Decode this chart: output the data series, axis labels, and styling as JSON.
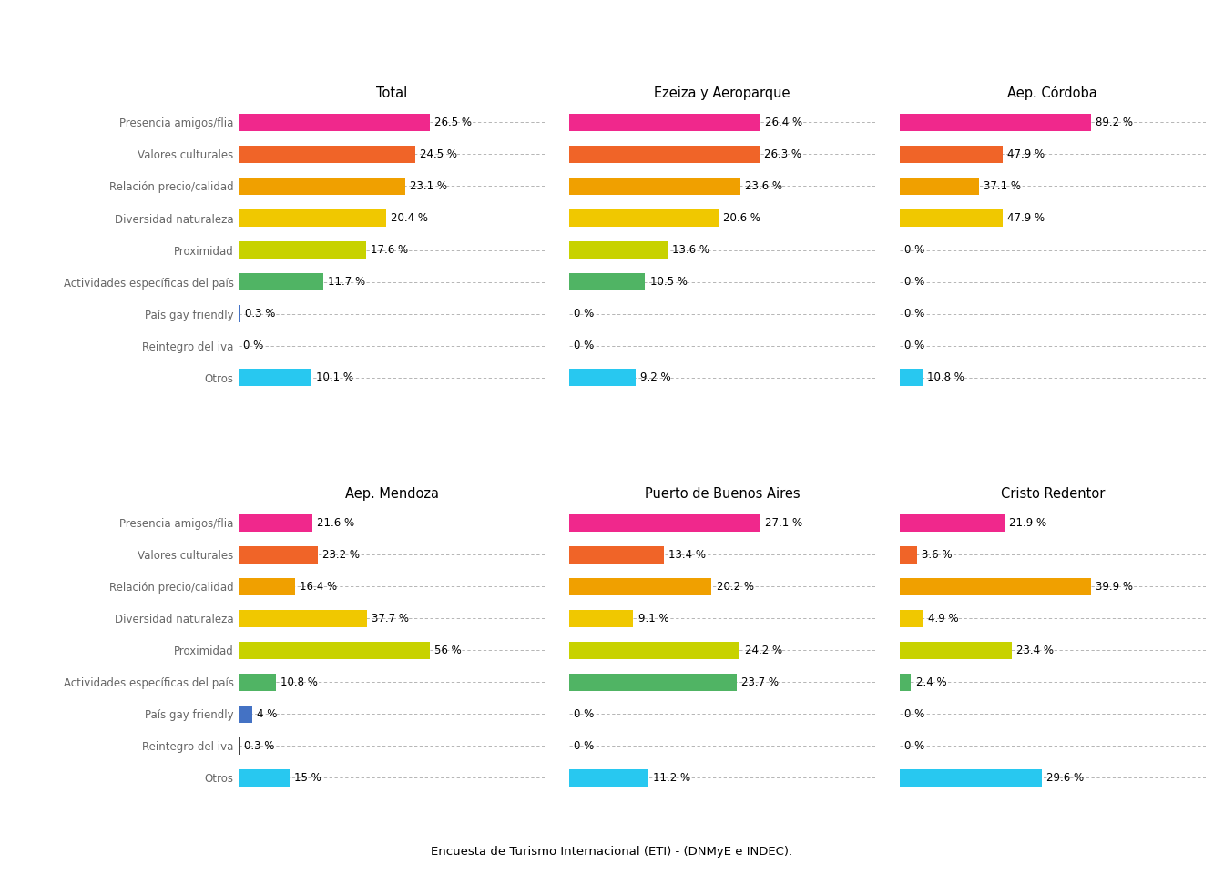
{
  "categories": [
    "Presencia amigos/flia",
    "Valores culturales",
    "Relación precio/calidad",
    "Diversidad naturaleza",
    "Proximidad",
    "Actividades específicas del país",
    "País gay friendly",
    "Reintegro del iva",
    "Otros"
  ],
  "bar_colors": [
    "#F0288C",
    "#F06428",
    "#F0A000",
    "#F0C800",
    "#C8D200",
    "#50B464",
    "#4472C4",
    "#404040",
    "#28C8F0"
  ],
  "panels": [
    {
      "title": "Total",
      "values": [
        26.5,
        24.5,
        23.1,
        20.4,
        17.6,
        11.7,
        0.3,
        0.0,
        10.1
      ]
    },
    {
      "title": "Ezeiza y Aeroparque",
      "values": [
        26.4,
        26.3,
        23.6,
        20.6,
        13.6,
        10.5,
        0.0,
        0.0,
        9.2
      ]
    },
    {
      "title": "Aep. Córdoba",
      "values": [
        89.2,
        47.9,
        37.1,
        47.9,
        0.0,
        0.0,
        0.0,
        0.0,
        10.8
      ]
    },
    {
      "title": "Aep. Mendoza",
      "values": [
        21.6,
        23.2,
        16.4,
        37.7,
        56.0,
        10.8,
        4.0,
        0.3,
        15.0
      ]
    },
    {
      "title": "Puerto de Buenos Aires",
      "values": [
        27.1,
        13.4,
        20.2,
        9.1,
        24.2,
        23.7,
        0.0,
        0.0,
        11.2
      ]
    },
    {
      "title": "Cristo Redentor",
      "values": [
        21.9,
        3.6,
        39.9,
        4.9,
        23.4,
        2.4,
        0.0,
        0.0,
        29.6
      ]
    }
  ],
  "label_values": [
    [
      "26.5 %",
      "24.5 %",
      "23.1 %",
      "20.4 %",
      "17.6 %",
      "11.7 %",
      "0.3 %",
      "0 %",
      "10.1 %"
    ],
    [
      "26.4 %",
      "26.3 %",
      "23.6 %",
      "20.6 %",
      "13.6 %",
      "10.5 %",
      "0 %",
      "0 %",
      "9.2 %"
    ],
    [
      "89.2 %",
      "47.9 %",
      "37.1 %",
      "47.9 %",
      "0 %",
      "0 %",
      "0 %",
      "0 %",
      "10.8 %"
    ],
    [
      "21.6 %",
      "23.2 %",
      "16.4 %",
      "37.7 %",
      "56 %",
      "10.8 %",
      "4 %",
      "0.3 %",
      "15 %"
    ],
    [
      "27.1 %",
      "13.4 %",
      "20.2 %",
      "9.1 %",
      "24.2 %",
      "23.7 %",
      "0 %",
      "0 %",
      "11.2 %"
    ],
    [
      "21.9 %",
      "3.6 %",
      "39.9 %",
      "4.9 %",
      "23.4 %",
      "2.4 %",
      "0 %",
      "0 %",
      "29.6 %"
    ]
  ],
  "footnote": "Encuesta de Turismo Internacional (ETI) - (DNMyE e INDEC).",
  "background_color": "#ffffff",
  "text_color": "#666666",
  "grid_color": "#aaaaaa"
}
